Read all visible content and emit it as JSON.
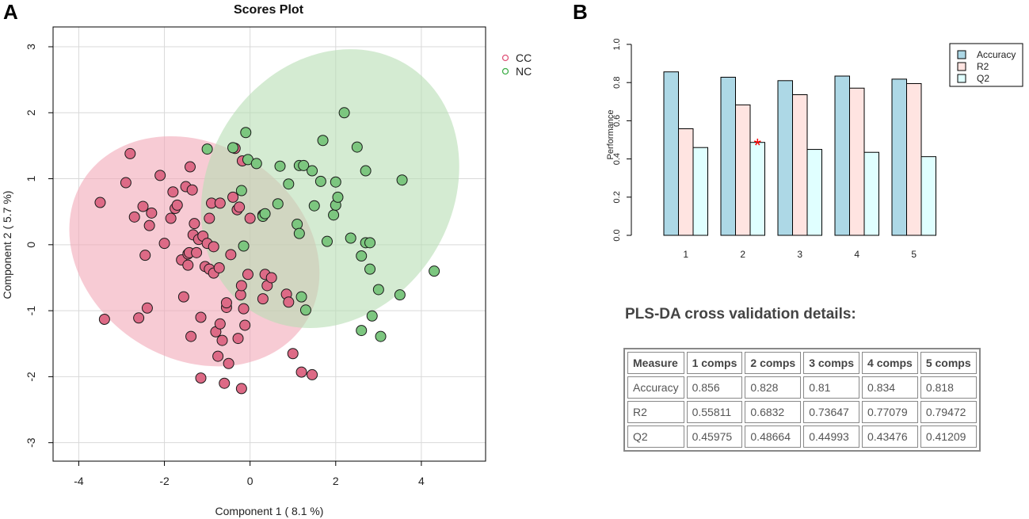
{
  "panel_a": {
    "letter": "A"
  },
  "panel_b": {
    "letter": "B"
  },
  "cv_heading": "PLS-DA cross validation details:",
  "chart_data": [
    {
      "type": "scatter",
      "title": "Scores Plot",
      "xlabel": "Component 1 ( 8.1 %)",
      "ylabel": "Component 2 ( 5.7 %)",
      "xlim": [
        -4.6,
        5.5
      ],
      "ylim": [
        -3.28,
        3.3
      ],
      "xticks": [
        -4,
        -2,
        0,
        2,
        4
      ],
      "yticks": [
        -3,
        -2,
        -1,
        0,
        1,
        2,
        3
      ],
      "grid": true,
      "legend_position": "top-right",
      "series": [
        {
          "name": "CC",
          "color": "#e0557a",
          "fill": "#dd6a86",
          "ellipse": {
            "cx": -1.3,
            "cy": -0.1,
            "rx": 2.5,
            "ry": 2.0,
            "angle_deg": -57,
            "fill": "#f2a9b8"
          },
          "points": [
            [
              -3.5,
              0.64
            ],
            [
              -3.4,
              -1.13
            ],
            [
              -2.9,
              0.94
            ],
            [
              -2.8,
              1.38
            ],
            [
              -2.7,
              0.42
            ],
            [
              -2.6,
              -1.11
            ],
            [
              -2.5,
              0.58
            ],
            [
              -2.45,
              -0.16
            ],
            [
              -2.4,
              -0.96
            ],
            [
              -2.35,
              0.29
            ],
            [
              -2.3,
              0.48
            ],
            [
              -2.1,
              1.05
            ],
            [
              -2.0,
              0.02
            ],
            [
              -1.85,
              0.4
            ],
            [
              -1.8,
              0.8
            ],
            [
              -1.75,
              0.55
            ],
            [
              -1.7,
              0.6
            ],
            [
              -1.6,
              -0.23
            ],
            [
              -1.55,
              -0.79
            ],
            [
              -1.5,
              0.88
            ],
            [
              -1.45,
              -0.31
            ],
            [
              -1.45,
              -0.14
            ],
            [
              -1.42,
              -0.12
            ],
            [
              -1.4,
              1.18
            ],
            [
              -1.38,
              -1.39
            ],
            [
              -1.35,
              0.83
            ],
            [
              -1.33,
              0.15
            ],
            [
              -1.3,
              0.32
            ],
            [
              -1.25,
              -0.12
            ],
            [
              -1.2,
              0.08
            ],
            [
              -1.15,
              -2.02
            ],
            [
              -1.15,
              -1.1
            ],
            [
              -1.1,
              0.13
            ],
            [
              -1.05,
              -0.33
            ],
            [
              -1.0,
              0.02
            ],
            [
              -0.95,
              0.4
            ],
            [
              -0.95,
              -0.37
            ],
            [
              -0.9,
              0.63
            ],
            [
              -0.85,
              -0.03
            ],
            [
              -0.85,
              -0.43
            ],
            [
              -0.8,
              -1.32
            ],
            [
              -0.75,
              -1.69
            ],
            [
              -0.72,
              -0.35
            ],
            [
              -0.7,
              0.63
            ],
            [
              -0.7,
              -1.2
            ],
            [
              -0.65,
              -1.45
            ],
            [
              -0.6,
              -2.1
            ],
            [
              -0.55,
              -0.95
            ],
            [
              -0.55,
              -0.88
            ],
            [
              -0.5,
              -1.8
            ],
            [
              -0.45,
              -0.15
            ],
            [
              -0.4,
              0.72
            ],
            [
              -0.35,
              1.46
            ],
            [
              -0.3,
              0.53
            ],
            [
              -0.28,
              -1.42
            ],
            [
              -0.25,
              0.57
            ],
            [
              -0.22,
              -0.76
            ],
            [
              -0.2,
              -2.18
            ],
            [
              -0.2,
              -0.62
            ],
            [
              -0.18,
              1.27
            ],
            [
              -0.15,
              -0.97
            ],
            [
              -0.12,
              -1.22
            ],
            [
              -0.05,
              -0.45
            ],
            [
              0.0,
              0.4
            ],
            [
              0.3,
              0.45
            ],
            [
              0.3,
              -0.82
            ],
            [
              0.35,
              -0.45
            ],
            [
              0.4,
              -0.62
            ],
            [
              0.5,
              -0.5
            ],
            [
              0.85,
              -0.75
            ],
            [
              0.9,
              -0.87
            ],
            [
              1.0,
              -1.65
            ],
            [
              1.2,
              -1.93
            ],
            [
              1.45,
              -1.97
            ]
          ]
        },
        {
          "name": "NC",
          "color": "#3fae49",
          "fill": "#7cc67f",
          "ellipse": {
            "cx": 1.87,
            "cy": 0.85,
            "rx": 3.4,
            "ry": 1.85,
            "angle_deg": -58,
            "fill": "#b7deb4"
          },
          "points": [
            [
              -1.0,
              1.45
            ],
            [
              -0.4,
              1.47
            ],
            [
              -0.2,
              0.82
            ],
            [
              -0.15,
              -0.02
            ],
            [
              -0.1,
              1.7
            ],
            [
              -0.05,
              1.29
            ],
            [
              0.15,
              1.23
            ],
            [
              0.3,
              0.43
            ],
            [
              0.35,
              0.47
            ],
            [
              0.65,
              0.62
            ],
            [
              0.7,
              1.19
            ],
            [
              0.9,
              0.92
            ],
            [
              1.1,
              0.31
            ],
            [
              1.15,
              1.2
            ],
            [
              1.15,
              0.17
            ],
            [
              1.2,
              -0.79
            ],
            [
              1.25,
              1.2
            ],
            [
              1.3,
              -0.99
            ],
            [
              1.45,
              1.12
            ],
            [
              1.5,
              0.59
            ],
            [
              1.65,
              0.96
            ],
            [
              1.7,
              1.58
            ],
            [
              1.8,
              0.05
            ],
            [
              1.95,
              0.45
            ],
            [
              2.0,
              0.6
            ],
            [
              2.0,
              0.95
            ],
            [
              2.05,
              0.72
            ],
            [
              2.2,
              2.0
            ],
            [
              2.35,
              0.1
            ],
            [
              2.5,
              1.48
            ],
            [
              2.6,
              -0.17
            ],
            [
              2.6,
              -1.3
            ],
            [
              2.7,
              0.03
            ],
            [
              2.7,
              1.12
            ],
            [
              2.8,
              -0.37
            ],
            [
              2.8,
              0.03
            ],
            [
              2.85,
              -1.08
            ],
            [
              3.0,
              -0.68
            ],
            [
              3.05,
              -1.39
            ],
            [
              3.5,
              -0.76
            ],
            [
              3.55,
              0.98
            ],
            [
              4.3,
              -0.4
            ]
          ]
        }
      ]
    },
    {
      "type": "bar",
      "title": "",
      "xlabel": "",
      "ylabel": "Performance",
      "categories": [
        "1",
        "2",
        "3",
        "4",
        "5"
      ],
      "ylim": [
        0,
        1.0
      ],
      "yticks": [
        "0.0",
        "0.2",
        "0.4",
        "0.6",
        "0.8",
        "1.0"
      ],
      "grid": false,
      "legend_position": "top-right",
      "series": [
        {
          "name": "Accuracy",
          "color": "#add8e6",
          "values": [
            0.856,
            0.828,
            0.81,
            0.834,
            0.818
          ]
        },
        {
          "name": "R2",
          "color": "#ffe4e1",
          "values": [
            0.55811,
            0.6832,
            0.73647,
            0.77079,
            0.79472
          ]
        },
        {
          "name": "Q2",
          "color": "#e0ffff",
          "values": [
            0.45975,
            0.48664,
            0.44993,
            0.43476,
            0.41209
          ]
        }
      ],
      "best_marker": {
        "category": "2",
        "series": "Q2",
        "symbol": "*",
        "color": "#ff0000"
      }
    },
    {
      "type": "table",
      "columns": [
        "Measure",
        "1 comps",
        "2 comps",
        "3 comps",
        "4 comps",
        "5 comps"
      ],
      "rows": [
        [
          "Accuracy",
          "0.856",
          "0.828",
          "0.81",
          "0.834",
          "0.818"
        ],
        [
          "R2",
          "0.55811",
          "0.6832",
          "0.73647",
          "0.77079",
          "0.79472"
        ],
        [
          "Q2",
          "0.45975",
          "0.48664",
          "0.44993",
          "0.43476",
          "0.41209"
        ]
      ]
    }
  ]
}
